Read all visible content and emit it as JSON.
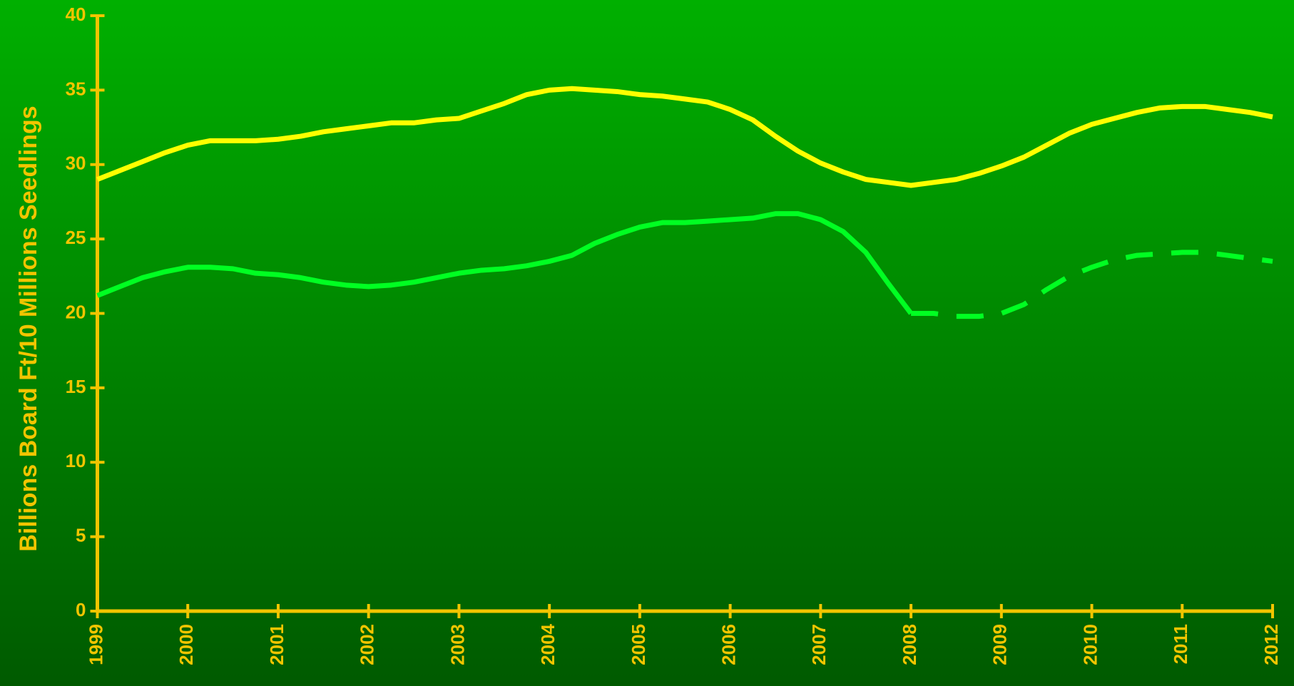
{
  "chart_data": {
    "type": "line",
    "y_label": "Billions Board Ft/10 Millions Seedlings",
    "x": [
      1999,
      1999.25,
      1999.5,
      1999.75,
      2000,
      2000.25,
      2000.5,
      2000.75,
      2001,
      2001.25,
      2001.5,
      2001.75,
      2002,
      2002.25,
      2002.5,
      2002.75,
      2003,
      2003.25,
      2003.5,
      2003.75,
      2004,
      2004.25,
      2004.5,
      2004.75,
      2005,
      2005.25,
      2005.5,
      2005.75,
      2006,
      2006.25,
      2006.5,
      2006.75,
      2007,
      2007.25,
      2007.5,
      2007.75,
      2008,
      2008.25,
      2008.5,
      2008.75,
      2009,
      2009.25,
      2009.5,
      2009.75,
      2010,
      2010.25,
      2010.5,
      2010.75,
      2011,
      2011.25,
      2011.5,
      2011.75,
      2012
    ],
    "series": [
      {
        "color": "#ffff00",
        "dashed": false,
        "values": [
          29.0,
          29.6,
          30.2,
          30.8,
          31.3,
          31.6,
          31.6,
          31.6,
          31.7,
          31.9,
          32.2,
          32.4,
          32.6,
          32.8,
          32.8,
          33.0,
          33.1,
          33.6,
          34.1,
          34.7,
          35.0,
          35.1,
          35.0,
          34.9,
          34.7,
          34.6,
          34.4,
          34.2,
          33.7,
          33.0,
          31.9,
          30.9,
          30.1,
          29.5,
          29.0,
          28.8,
          28.6,
          28.8,
          29.0,
          29.4,
          29.9,
          30.5,
          31.3,
          32.1,
          32.7,
          33.1,
          33.5,
          33.8,
          33.9,
          33.9,
          33.7,
          33.5,
          33.2
        ]
      },
      {
        "color": "#00ff22",
        "dashed": false,
        "values": [
          21.2,
          21.8,
          22.4,
          22.8,
          23.1,
          23.1,
          23.0,
          22.7,
          22.6,
          22.4,
          22.1,
          21.9,
          21.8,
          21.9,
          22.1,
          22.4,
          22.7,
          22.9,
          23.0,
          23.2,
          23.5,
          23.9,
          24.7,
          25.3,
          25.8,
          26.1,
          26.1,
          26.2,
          26.3,
          26.4,
          26.7,
          26.7,
          26.3,
          25.5,
          24.1,
          22.0,
          20.0,
          null,
          null,
          null,
          null,
          null,
          null,
          null,
          null,
          null,
          null,
          null,
          null,
          null,
          null,
          null,
          null
        ]
      },
      {
        "color": "#00ff22",
        "dashed": true,
        "values": [
          null,
          null,
          null,
          null,
          null,
          null,
          null,
          null,
          null,
          null,
          null,
          null,
          null,
          null,
          null,
          null,
          null,
          null,
          null,
          null,
          null,
          null,
          null,
          null,
          null,
          null,
          null,
          null,
          null,
          null,
          null,
          null,
          null,
          null,
          null,
          null,
          20.0,
          20.0,
          19.8,
          19.8,
          20.0,
          20.6,
          21.6,
          22.5,
          23.1,
          23.6,
          23.9,
          24.0,
          24.1,
          24.1,
          23.9,
          23.7,
          23.5
        ]
      }
    ],
    "xlim": [
      1999,
      2012
    ],
    "xticks": [
      1999,
      2000,
      2001,
      2002,
      2003,
      2004,
      2005,
      2006,
      2007,
      2008,
      2009,
      2010,
      2011,
      2012
    ],
    "ylim": [
      0,
      40
    ],
    "yticks": [
      0,
      5,
      10,
      15,
      20,
      25,
      30,
      35,
      40
    ],
    "axis_color": "#f2c500",
    "grid": false
  }
}
